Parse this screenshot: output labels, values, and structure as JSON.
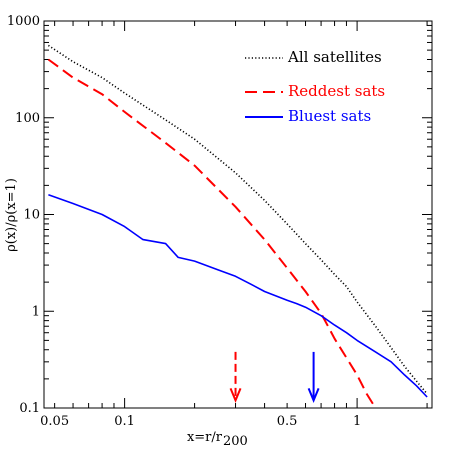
{
  "chart_data": {
    "type": "line",
    "xlabel": "x=r/r",
    "xlabel_sub": "200",
    "ylabel": "ρ(x)/ρ(x=1)",
    "x_scale": "log",
    "y_scale": "log",
    "xlim": [
      0.045,
      2.1
    ],
    "ylim": [
      0.1,
      1000
    ],
    "x_ticks": [
      {
        "value": 0.05,
        "label": "0.05"
      },
      {
        "value": 0.1,
        "label": "0.1"
      },
      {
        "value": 0.5,
        "label": "0.5"
      },
      {
        "value": 1,
        "label": "1"
      }
    ],
    "y_ticks": [
      {
        "value": 0.1,
        "label": "0.1"
      },
      {
        "value": 1,
        "label": "1"
      },
      {
        "value": 10,
        "label": "10"
      },
      {
        "value": 100,
        "label": "100"
      },
      {
        "value": 1000,
        "label": "1000"
      }
    ],
    "legend_position": "top-right",
    "series": [
      {
        "name": "All satellites",
        "style": "dotted",
        "color": "#000000",
        "x": [
          0.047,
          0.06,
          0.08,
          0.1,
          0.15,
          0.2,
          0.3,
          0.4,
          0.5,
          0.6,
          0.7,
          0.8,
          0.9,
          1.0,
          1.2,
          1.4,
          1.6,
          1.8,
          2.0
        ],
        "y": [
          560,
          380,
          260,
          180,
          95,
          60,
          27,
          14,
          8,
          5,
          3.4,
          2.4,
          1.8,
          1.25,
          0.7,
          0.42,
          0.27,
          0.19,
          0.14
        ]
      },
      {
        "name": "Reddest sats",
        "style": "dashed",
        "color": "#ff0000",
        "x": [
          0.047,
          0.06,
          0.08,
          0.1,
          0.15,
          0.2,
          0.3,
          0.4,
          0.5,
          0.6,
          0.7,
          0.75,
          0.8,
          0.9,
          1.0,
          1.1,
          1.2
        ],
        "y": [
          400,
          260,
          175,
          115,
          55,
          32,
          12,
          5.5,
          2.8,
          1.6,
          0.95,
          0.7,
          0.52,
          0.33,
          0.22,
          0.14,
          0.1
        ]
      },
      {
        "name": "Bluest sats",
        "style": "solid",
        "color": "#0000ff",
        "x": [
          0.047,
          0.06,
          0.08,
          0.1,
          0.12,
          0.15,
          0.17,
          0.2,
          0.25,
          0.3,
          0.35,
          0.4,
          0.5,
          0.55,
          0.6,
          0.7,
          0.8,
          0.9,
          1.0,
          1.2,
          1.4,
          1.6,
          1.8,
          2.0
        ],
        "y": [
          16,
          13,
          10,
          7.5,
          5.5,
          5.0,
          3.6,
          3.3,
          2.7,
          2.3,
          1.9,
          1.6,
          1.3,
          1.2,
          1.1,
          0.9,
          0.72,
          0.6,
          0.5,
          0.38,
          0.3,
          0.22,
          0.17,
          0.13
        ]
      }
    ],
    "markers": [
      {
        "type": "arrow",
        "style": "dashed",
        "color": "#ff0000",
        "x": 0.3,
        "y_from": 0.38,
        "y_to": 0.12
      },
      {
        "type": "arrow",
        "style": "solid",
        "color": "#0000ff",
        "x": 0.65,
        "y_from": 0.38,
        "y_to": 0.12
      }
    ]
  }
}
